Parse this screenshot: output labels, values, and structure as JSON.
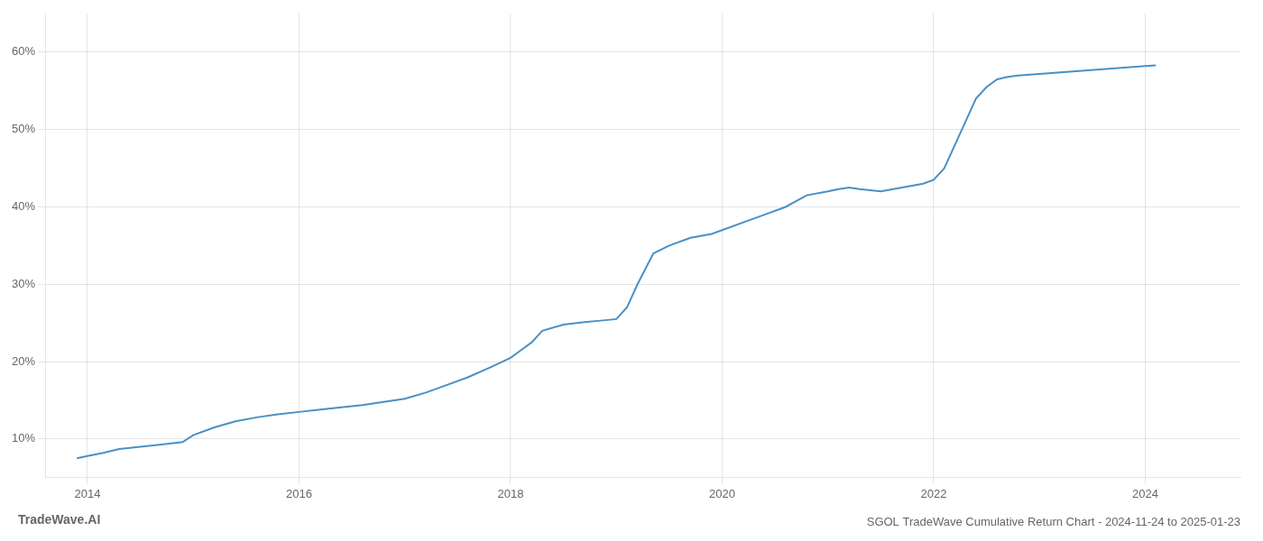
{
  "chart_data": {
    "type": "line",
    "title": "SGOL TradeWave Cumulative Return Chart - 2024-11-24 to 2025-01-23",
    "annotations": [
      "TradeWave.AI"
    ],
    "color": "#4a90c4",
    "x": [
      2013.9,
      2014.0,
      2014.15,
      2014.3,
      2014.5,
      2014.7,
      2014.9,
      2015.0,
      2015.2,
      2015.4,
      2015.6,
      2015.8,
      2016.0,
      2016.2,
      2016.4,
      2016.6,
      2016.8,
      2017.0,
      2017.2,
      2017.4,
      2017.6,
      2017.8,
      2018.0,
      2018.1,
      2018.2,
      2018.3,
      2018.5,
      2018.7,
      2018.85,
      2019.0,
      2019.1,
      2019.2,
      2019.35,
      2019.5,
      2019.7,
      2019.9,
      2020.0,
      2020.2,
      2020.4,
      2020.6,
      2020.8,
      2021.0,
      2021.1,
      2021.2,
      2021.3,
      2021.5,
      2021.7,
      2021.9,
      2022.0,
      2022.1,
      2022.2,
      2022.3,
      2022.4,
      2022.5,
      2022.6,
      2022.7,
      2022.8,
      2023.0,
      2023.2,
      2023.4,
      2023.6,
      2023.8,
      2024.0,
      2024.1
    ],
    "values": [
      7.5,
      7.8,
      8.2,
      8.7,
      9.0,
      9.3,
      9.6,
      10.5,
      11.5,
      12.3,
      12.8,
      13.2,
      13.5,
      13.8,
      14.1,
      14.4,
      14.8,
      15.2,
      16.0,
      17.0,
      18.0,
      19.2,
      20.5,
      21.5,
      22.5,
      24.0,
      24.8,
      25.1,
      25.3,
      25.5,
      27.0,
      30.0,
      34.0,
      35.0,
      36.0,
      36.5,
      37.0,
      38.0,
      39.0,
      40.0,
      41.5,
      42.0,
      42.3,
      42.5,
      42.3,
      42.0,
      42.5,
      43.0,
      43.5,
      45.0,
      48.0,
      51.0,
      54.0,
      55.5,
      56.5,
      56.8,
      57.0,
      57.2,
      57.4,
      57.6,
      57.8,
      58.0,
      58.2,
      58.3
    ],
    "xlim": [
      2013.6,
      2024.9
    ],
    "xticks": [
      2014,
      2016,
      2018,
      2020,
      2022,
      2024
    ],
    "ylim": [
      5,
      65
    ],
    "yticks": [
      {
        "value": 10,
        "label": "10%"
      },
      {
        "value": 20,
        "label": "20%"
      },
      {
        "value": 30,
        "label": "30%"
      },
      {
        "value": 40,
        "label": "40%"
      },
      {
        "value": 50,
        "label": "50%"
      },
      {
        "value": 60,
        "label": "60%"
      }
    ],
    "grid": true
  }
}
